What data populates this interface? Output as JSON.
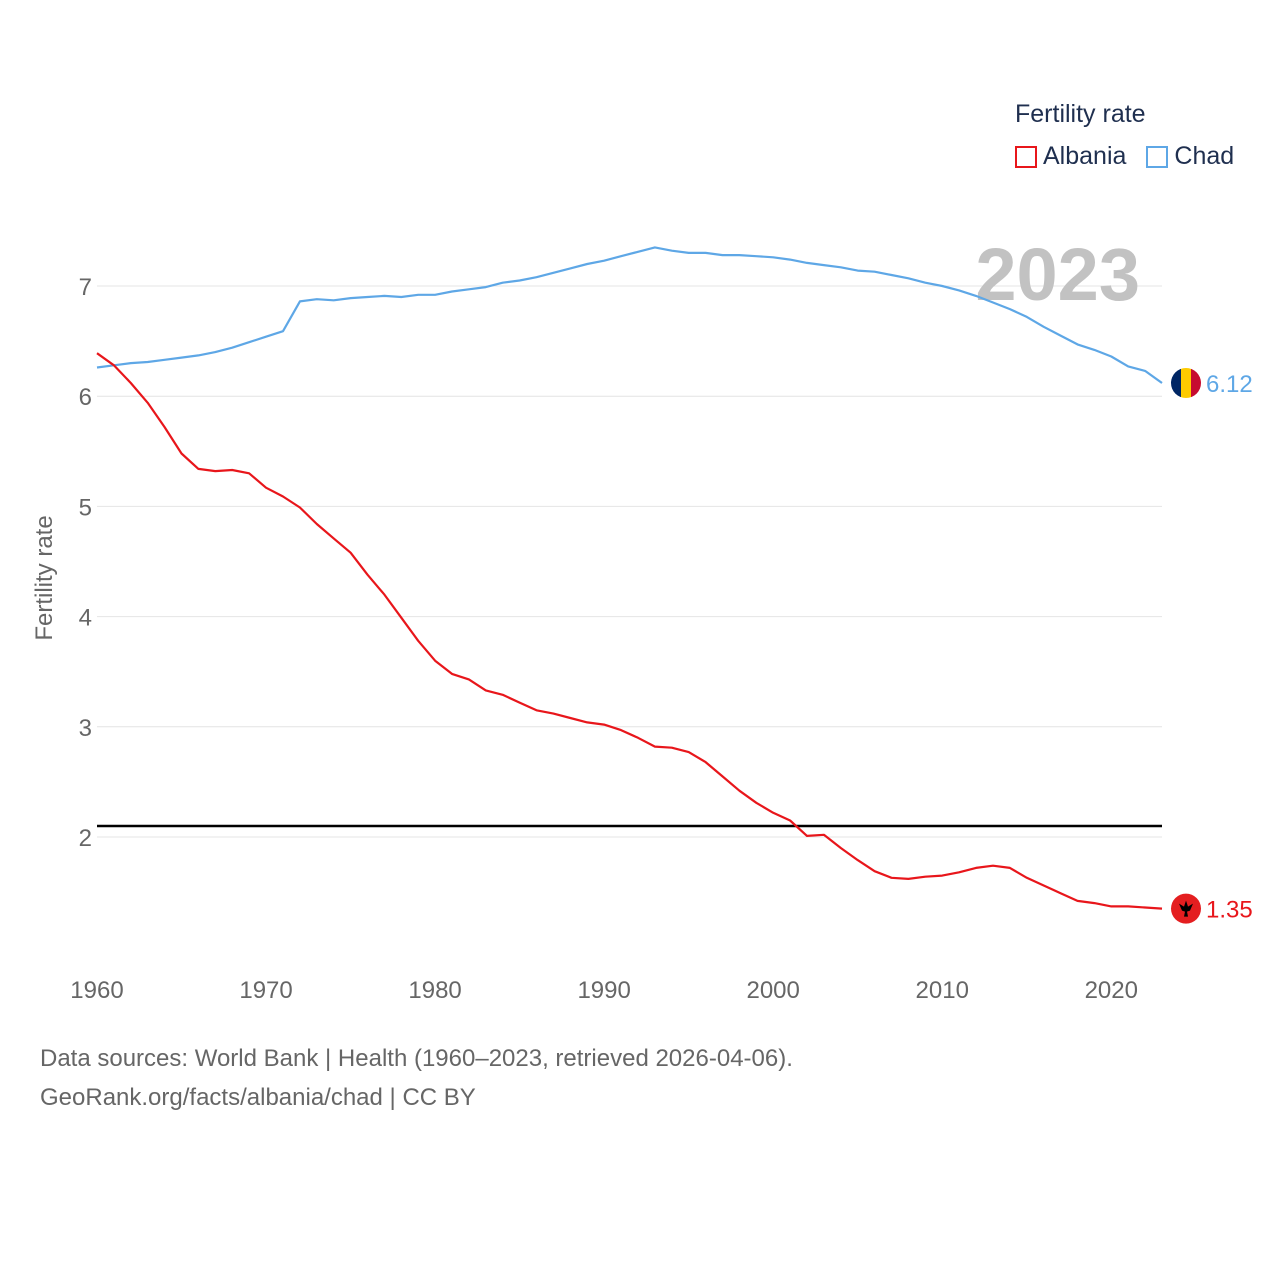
{
  "chart_data": {
    "type": "line",
    "title": "",
    "ylabel": "Fertility rate",
    "xlabel": "",
    "ylim": [
      0.75,
      7.75
    ],
    "xlim": [
      1960,
      2023
    ],
    "yticks": [
      2,
      3,
      4,
      5,
      6,
      7
    ],
    "xticks": [
      1960,
      1970,
      1980,
      1990,
      2000,
      2010,
      2020
    ],
    "reference_line": 2.1,
    "year_label": "2023",
    "legend": {
      "title": "Fertility rate",
      "position": "top-right"
    },
    "x": [
      1960,
      1961,
      1962,
      1963,
      1964,
      1965,
      1966,
      1967,
      1968,
      1969,
      1970,
      1971,
      1972,
      1973,
      1974,
      1975,
      1976,
      1977,
      1978,
      1979,
      1980,
      1981,
      1982,
      1983,
      1984,
      1985,
      1986,
      1987,
      1988,
      1989,
      1990,
      1991,
      1992,
      1993,
      1994,
      1995,
      1996,
      1997,
      1998,
      1999,
      2000,
      2001,
      2002,
      2003,
      2004,
      2005,
      2006,
      2007,
      2008,
      2009,
      2010,
      2011,
      2012,
      2013,
      2014,
      2015,
      2016,
      2017,
      2018,
      2019,
      2020,
      2021,
      2022,
      2023
    ],
    "series": [
      {
        "name": "Albania",
        "color": "#e8161b",
        "end_label": "1.35",
        "flag_icon": "albania-flag-icon",
        "values": [
          6.39,
          6.28,
          6.12,
          5.94,
          5.72,
          5.48,
          5.34,
          5.32,
          5.33,
          5.3,
          5.17,
          5.09,
          4.99,
          4.84,
          4.71,
          4.58,
          4.38,
          4.2,
          3.99,
          3.78,
          3.6,
          3.48,
          3.43,
          3.33,
          3.29,
          3.22,
          3.15,
          3.12,
          3.08,
          3.04,
          3.02,
          2.97,
          2.9,
          2.82,
          2.81,
          2.77,
          2.68,
          2.55,
          2.42,
          2.31,
          2.22,
          2.15,
          2.01,
          2.02,
          1.9,
          1.79,
          1.69,
          1.63,
          1.62,
          1.64,
          1.65,
          1.68,
          1.72,
          1.74,
          1.72,
          1.63,
          1.56,
          1.49,
          1.42,
          1.4,
          1.37,
          1.37,
          1.36,
          1.35
        ]
      },
      {
        "name": "Chad",
        "color": "#5ea7e6",
        "end_label": "6.12",
        "flag_icon": "chad-flag-icon",
        "values": [
          6.26,
          6.28,
          6.3,
          6.31,
          6.33,
          6.35,
          6.37,
          6.4,
          6.44,
          6.49,
          6.54,
          6.59,
          6.86,
          6.88,
          6.87,
          6.89,
          6.9,
          6.91,
          6.9,
          6.92,
          6.92,
          6.95,
          6.97,
          6.99,
          7.03,
          7.05,
          7.08,
          7.12,
          7.16,
          7.2,
          7.23,
          7.27,
          7.31,
          7.35,
          7.32,
          7.3,
          7.3,
          7.28,
          7.28,
          7.27,
          7.26,
          7.24,
          7.21,
          7.19,
          7.17,
          7.14,
          7.13,
          7.1,
          7.07,
          7.03,
          7.0,
          6.96,
          6.91,
          6.85,
          6.79,
          6.72,
          6.63,
          6.55,
          6.47,
          6.42,
          6.36,
          6.27,
          6.23,
          6.12
        ]
      }
    ]
  },
  "footer": {
    "line1": "Data sources: World Bank | Health (1960–2023, retrieved 2026-04-06).",
    "line2": "GeoRank.org/facts/albania/chad | CC BY"
  }
}
